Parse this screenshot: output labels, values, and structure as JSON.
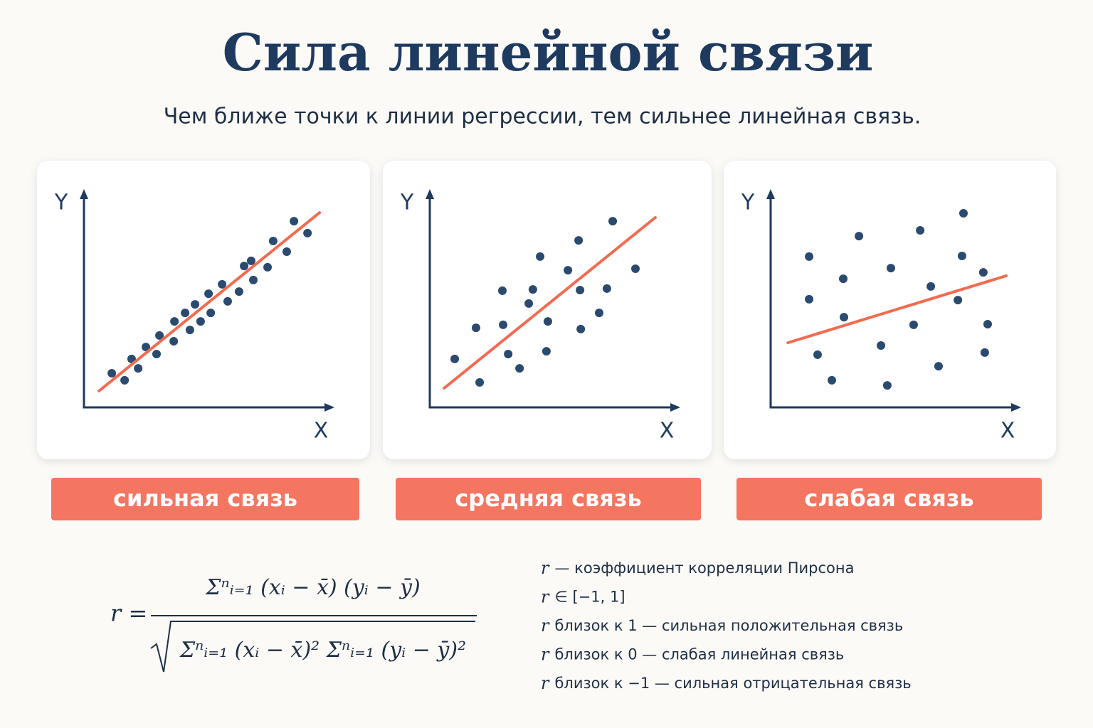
{
  "title": "Сила линейной связи",
  "subtitle": "Чем ближе точки к линии регрессии, тем сильнее линейная связь.",
  "chart_data": [
    {
      "type": "scatter",
      "x_label": "X",
      "y_label": "Y",
      "xlim": [
        0,
        100
      ],
      "ylim": [
        0,
        100
      ],
      "color": "#2b4a6f",
      "x": [
        11.5,
        16.8,
        19.7,
        22.4,
        25.6,
        30,
        31.2,
        37.1,
        37.4,
        41.8,
        43.8,
        45.9,
        48.2,
        51.5,
        52.4,
        57.1,
        59.4,
        64.1,
        66.2,
        69.1,
        70,
        75.9,
        78.2,
        83.8,
        86.8,
        92.4
      ],
      "y": [
        16,
        12.7,
        22.7,
        18.3,
        28.3,
        25,
        33.7,
        31,
        40.3,
        44.3,
        36.3,
        48.3,
        40.3,
        53.3,
        44.3,
        57.7,
        49.7,
        54.3,
        66.3,
        68.7,
        59.7,
        65.7,
        78,
        73,
        87.3,
        81.7
      ],
      "regression_line": {
        "x": [
          6.2,
          97.4
        ],
        "y": [
          7.7,
          91.3
        ],
        "color": "#f26b50"
      },
      "label": "сильная связь",
      "label_color": "#f47560"
    },
    {
      "type": "scatter",
      "x_label": "X",
      "y_label": "Y",
      "xlim": [
        0,
        100
      ],
      "ylim": [
        0,
        100
      ],
      "color": "#2b4a6f",
      "x": [
        10.3,
        20.6,
        19.1,
        30,
        30.3,
        32.4,
        37.1,
        40.9,
        42.6,
        45.6,
        48.2,
        48.8,
        57.1,
        61.5,
        62.1,
        62.4,
        70,
        73.2,
        75.6,
        85
      ],
      "y": [
        22.7,
        11.7,
        37.3,
        54.7,
        38.7,
        25,
        18.3,
        48.7,
        55.3,
        70.7,
        26.3,
        40.3,
        64.3,
        78.3,
        55,
        36.7,
        44.3,
        55.7,
        87.3,
        65
      ],
      "regression_line": {
        "x": [
          5.9,
          93.2
        ],
        "y": [
          9,
          89
        ],
        "color": "#f26b50"
      },
      "label": "средняя связь",
      "label_color": "#f47560"
    },
    {
      "type": "scatter",
      "x_label": "X",
      "y_label": "Y",
      "xlim": [
        0,
        100
      ],
      "ylim": [
        0,
        100
      ],
      "color": "#2b4a6f",
      "x": [
        15.9,
        15.9,
        19.4,
        25.3,
        30,
        30.3,
        36.5,
        45.6,
        48.2,
        49.7,
        59.1,
        61.8,
        66.2,
        69.4,
        77.4,
        79.1,
        79.7,
        87.9,
        88.5,
        89.7
      ],
      "y": [
        70.7,
        50.7,
        24.7,
        12.7,
        60.3,
        42.3,
        80.3,
        29,
        10.3,
        65.3,
        38.7,
        83,
        56.7,
        19.3,
        50.3,
        71,
        91,
        63.3,
        25.7,
        39
      ],
      "regression_line": {
        "x": [
          7.1,
          97.4
        ],
        "y": [
          30.3,
          61.7
        ],
        "color": "#f26b50"
      },
      "label": "слабая связь",
      "label_color": "#f47560"
    }
  ],
  "formula": {
    "lhs": "r =",
    "numerator": "Σⁿᵢ₌₁ (xᵢ − x̄) (yᵢ − ȳ)",
    "denominator": "Σⁿᵢ₌₁ (xᵢ − x̄)² Σⁿᵢ₌₁ (yᵢ − ȳ)²"
  },
  "notes": [
    {
      "var": "r",
      "text": "— коэффициент корреляции Пирсона"
    },
    {
      "var": "r",
      "text": "∈ [−1, 1]"
    },
    {
      "var": "r",
      "text": "близок к 1 — сильная положительная связь"
    },
    {
      "var": "r",
      "text": "близок к 0 — слабая линейная связь"
    },
    {
      "var": "r",
      "text": "близок к −1 — сильная отрицательная связь"
    }
  ]
}
